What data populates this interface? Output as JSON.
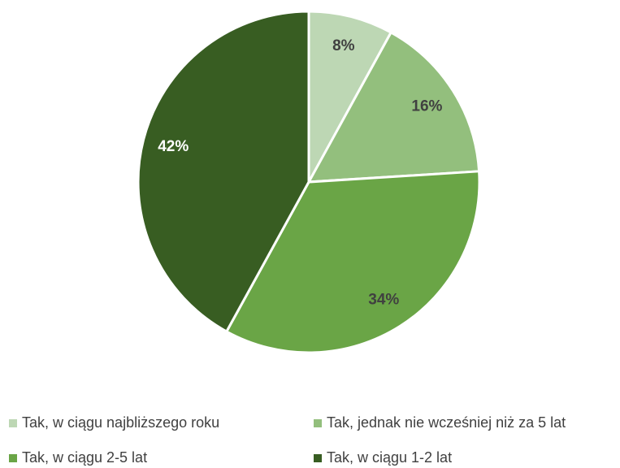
{
  "chart_data": {
    "type": "pie",
    "categories": [
      "Tak, w ciągu najbliższego roku",
      "Tak, jednak nie wcześniej niż za 5 lat",
      "Tak, w ciągu 2-5 lat",
      "Tak, w ciągu 1-2 lat"
    ],
    "values": [
      8,
      16,
      34,
      42
    ],
    "value_labels": [
      "8%",
      "16%",
      "34%",
      "42%"
    ],
    "colors": [
      "#bdd7b4",
      "#93bf7d",
      "#6aa546",
      "#385d22"
    ],
    "label_colors": [
      "#404040",
      "#404040",
      "#404040",
      "#ffffff"
    ],
    "legend": "bottom"
  }
}
